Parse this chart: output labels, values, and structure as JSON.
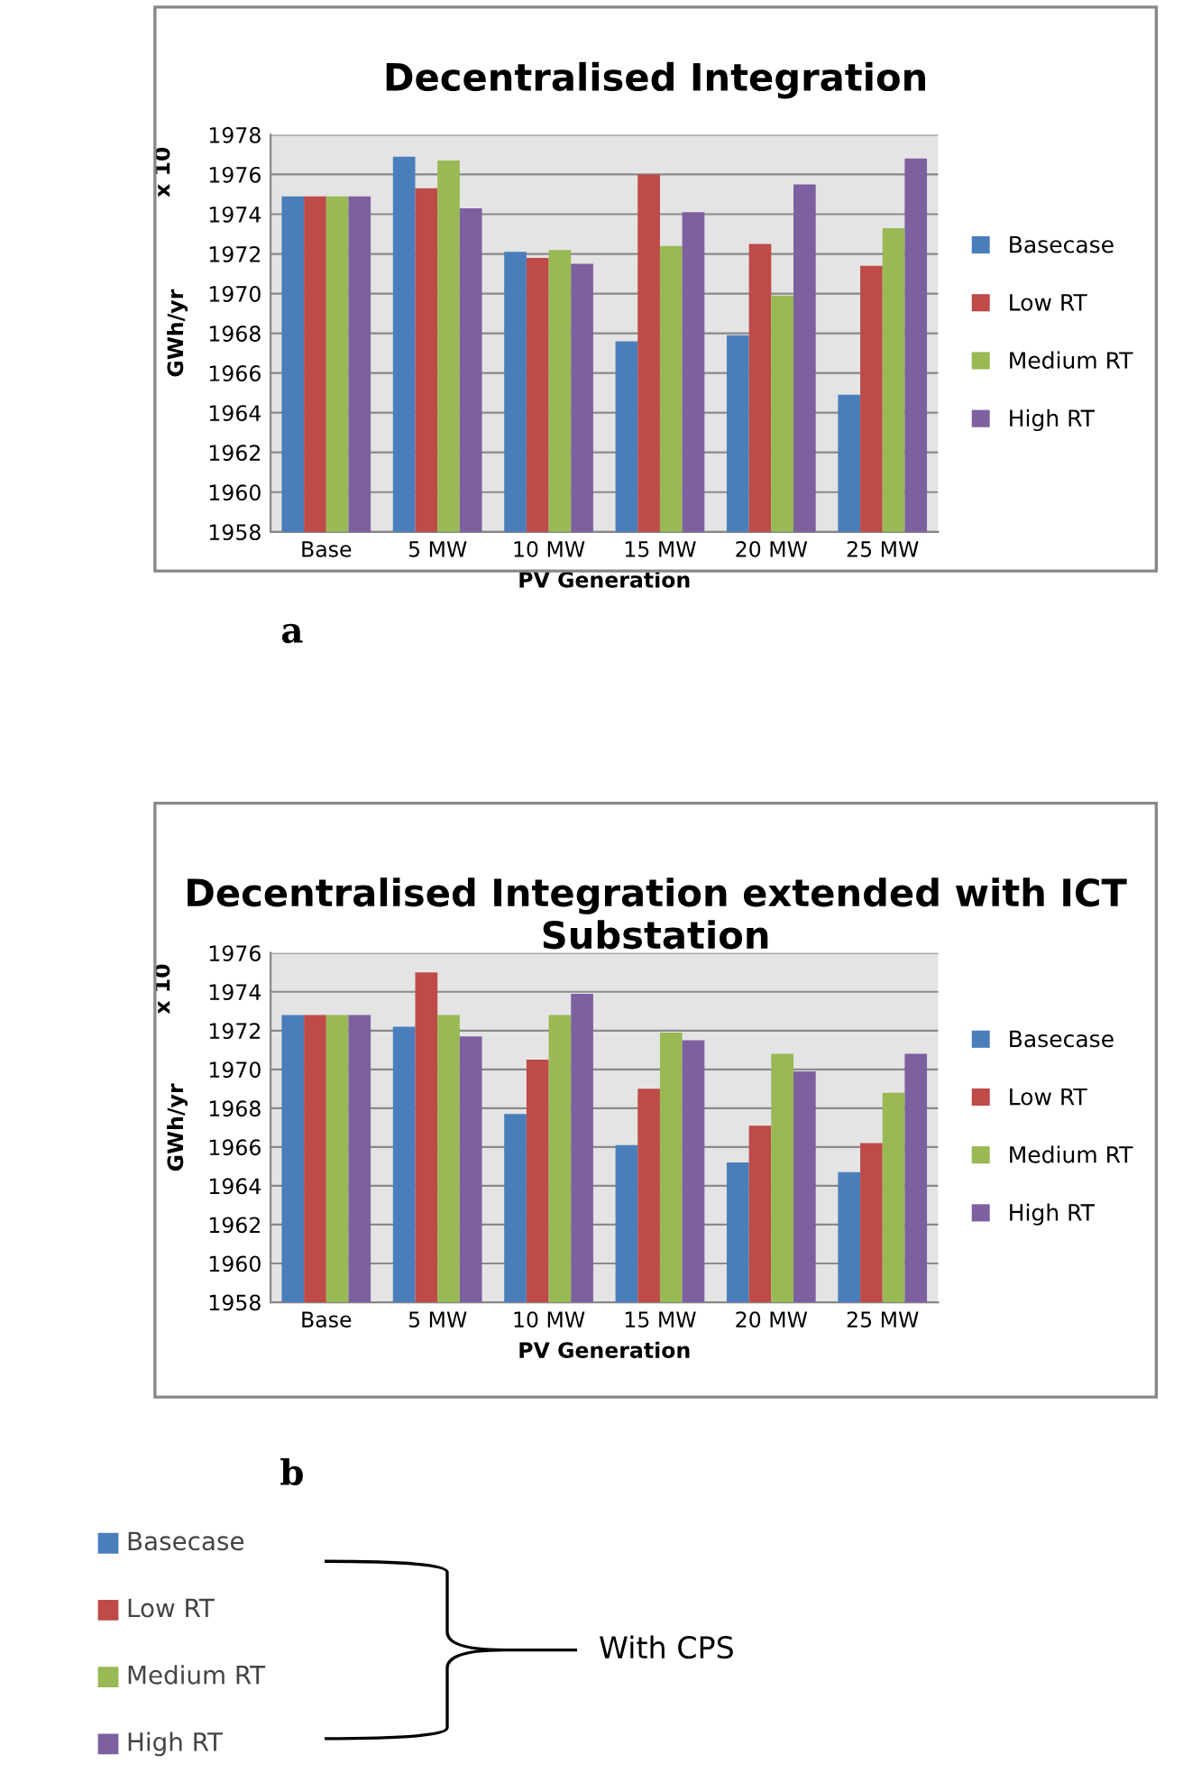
{
  "chart_data": [
    {
      "type": "bar",
      "title": "Decentralised Integration",
      "xlabel": "PV Generation",
      "ylabel": "GWh/yr",
      "annotations": [
        "x 10",
        "a"
      ],
      "categories": [
        "Base",
        "5 MW",
        "10 MW",
        "15 MW",
        "20 MW",
        "25 MW"
      ],
      "series": [
        {
          "name": "Basecase",
          "color": "#4a7ebb",
          "values": [
            1974.9,
            1976.9,
            1972.1,
            1967.6,
            1967.9,
            1964.9
          ]
        },
        {
          "name": "Low RT",
          "color": "#be4b48",
          "values": [
            1974.9,
            1975.3,
            1971.8,
            1976.0,
            1972.5,
            1971.4
          ]
        },
        {
          "name": "Medium RT",
          "color": "#98b954",
          "values": [
            1974.9,
            1976.7,
            1972.2,
            1972.4,
            1969.9,
            1973.3
          ]
        },
        {
          "name": "High RT",
          "color": "#7d60a0",
          "values": [
            1974.9,
            1974.3,
            1971.5,
            1974.1,
            1975.5,
            1976.8
          ]
        }
      ],
      "ylim": [
        1958,
        1978
      ],
      "yticks": [
        1958,
        1960,
        1962,
        1964,
        1966,
        1968,
        1970,
        1972,
        1974,
        1976,
        1978
      ],
      "grid": "y",
      "legend": "right"
    },
    {
      "type": "bar",
      "title": "Decentralised Integration extended with ICT Substation",
      "xlabel": "PV Generation",
      "ylabel": "GWh/yr",
      "annotations": [
        "x 10",
        "b"
      ],
      "categories": [
        "Base",
        "5 MW",
        "10 MW",
        "15 MW",
        "20 MW",
        "25 MW"
      ],
      "series": [
        {
          "name": "Basecase",
          "color": "#4a7ebb",
          "values": [
            1972.8,
            1972.2,
            1967.7,
            1966.1,
            1965.2,
            1964.7
          ]
        },
        {
          "name": "Low RT",
          "color": "#be4b48",
          "values": [
            1972.8,
            1975.0,
            1970.5,
            1969.0,
            1967.1,
            1966.2
          ]
        },
        {
          "name": "Medium RT",
          "color": "#98b954",
          "values": [
            1972.8,
            1972.8,
            1972.8,
            1971.9,
            1970.8,
            1968.8
          ]
        },
        {
          "name": "High RT",
          "color": "#7d60a0",
          "values": [
            1972.8,
            1971.7,
            1973.9,
            1971.5,
            1969.9,
            1970.8
          ]
        }
      ],
      "ylim": [
        1958,
        1976
      ],
      "yticks": [
        1958,
        1960,
        1962,
        1964,
        1966,
        1968,
        1970,
        1972,
        1974,
        1976
      ],
      "grid": "y",
      "legend": "right"
    },
    {
      "type": "other",
      "categories": [
        "Basecase",
        "Low RT",
        "Medium RT",
        "High RT"
      ],
      "colors": [
        "#4a7ebb",
        "#be4b48",
        "#98b954",
        "#7d60a0"
      ],
      "annotations": [
        "With CPS"
      ]
    }
  ]
}
